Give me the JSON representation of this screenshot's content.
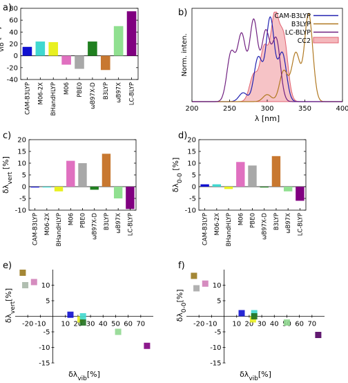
{
  "panel_labels": [
    "a)",
    "b)",
    "c)",
    "d)",
    "e)",
    "f)"
  ],
  "chart_data": [
    {
      "id": "a",
      "type": "bar",
      "ylabel": "δλ_vib [%]",
      "ylim": [
        -40,
        80
      ],
      "yticks": [
        -40,
        -20,
        0,
        20,
        40,
        60,
        80
      ],
      "categories": [
        "CAM-B3LYP",
        "M06-2X",
        "BHandHLYP",
        "M06",
        "PBE0",
        "ωB97X-D",
        "B3LYP",
        "ωB97X",
        "LC-BLYP"
      ],
      "values": [
        15,
        24,
        23,
        -15,
        -22,
        24,
        -24,
        50,
        75
      ],
      "colors": [
        "#1010d0",
        "#40d8d0",
        "#e8f020",
        "#e070c0",
        "#a8a8a8",
        "#208020",
        "#c87830",
        "#90e090",
        "#800080"
      ]
    },
    {
      "id": "b",
      "type": "line",
      "xlabel": "λ [nm]",
      "ylabel": "Norm. inten.",
      "xlim": [
        200,
        400
      ],
      "xticks": [
        200,
        250,
        300,
        350,
        400
      ],
      "legend_position": "top-right",
      "series": [
        {
          "name": "CAM-B3LYP",
          "color": "#2020b0",
          "peaks": [
            [
              268,
              0.1
            ],
            [
              288,
              0.5
            ],
            [
              304,
              0.95
            ],
            [
              320,
              0.55
            ]
          ]
        },
        {
          "name": "B3LYP",
          "color": "#b07820",
          "peaks": [
            [
              300,
              0.08
            ],
            [
              322,
              0.35
            ],
            [
              338,
              0.55
            ],
            [
              355,
              1.0
            ]
          ]
        },
        {
          "name": "LC-BLYP",
          "color": "#702080",
          "peaks": [
            [
              252,
              0.55
            ],
            [
              266,
              0.75
            ],
            [
              282,
              0.92
            ],
            [
              298,
              0.78
            ],
            [
              312,
              0.7
            ]
          ]
        },
        {
          "name": "CC2",
          "color": "#e06070",
          "fill": "#f4b8bc",
          "peaks": [
            [
              282,
              0.3
            ],
            [
              296,
              0.6
            ],
            [
              310,
              0.95
            ],
            [
              322,
              0.7
            ]
          ]
        }
      ]
    },
    {
      "id": "c",
      "type": "bar",
      "ylabel": "δλ_vert [%]",
      "ylim": [
        -10,
        20
      ],
      "yticks": [
        -10,
        -5,
        0,
        5,
        10,
        15,
        20
      ],
      "categories": [
        "CAM-B3LYP",
        "M06-2X",
        "BHandHLYP",
        "M06",
        "PBE0",
        "ωB97X-D",
        "B3LYP",
        "ωB97X",
        "LC-BLYP"
      ],
      "values": [
        0,
        0,
        -2,
        11,
        10,
        -1.3,
        14,
        -5,
        -9.5
      ],
      "colors": [
        "#1010d0",
        "#40d8d0",
        "#e8f020",
        "#e070c0",
        "#a8a8a8",
        "#208020",
        "#c87830",
        "#90e090",
        "#800080"
      ]
    },
    {
      "id": "d",
      "type": "bar",
      "ylabel": "δλ_0-0 [%]",
      "ylim": [
        -10,
        20
      ],
      "yticks": [
        -10,
        -5,
        0,
        5,
        10,
        15,
        20
      ],
      "categories": [
        "CAM-B3LYP",
        "M06-2X",
        "BHandHLYP",
        "M06",
        "PBE0",
        "ωB97X-D",
        "B3LYP",
        "ωB97X",
        "LC-BLYP"
      ],
      "values": [
        1,
        1,
        -1,
        10.5,
        9,
        -0.3,
        13,
        -2,
        -6
      ],
      "colors": [
        "#1010d0",
        "#40d8d0",
        "#e8f020",
        "#e070c0",
        "#a8a8a8",
        "#208020",
        "#c87830",
        "#90e090",
        "#800080"
      ]
    },
    {
      "id": "e",
      "type": "scatter",
      "xlabel": "δλ_vib[%]",
      "ylabel": "δλ_vert[%]",
      "xlim": [
        -30,
        80
      ],
      "ylim": [
        -15,
        15
      ],
      "xticks": [
        -20,
        -10,
        10,
        20,
        30,
        40,
        50,
        60,
        70
      ],
      "yticks": [
        -15,
        -10,
        -5,
        5,
        10
      ],
      "points": [
        {
          "x": -24,
          "y": 14,
          "color": "#9a7a20"
        },
        {
          "x": -22,
          "y": 10,
          "color": "#a8b8a8"
        },
        {
          "x": -15,
          "y": 11,
          "color": "#d080b8"
        },
        {
          "x": 14,
          "y": 0.5,
          "color": "#1010d0"
        },
        {
          "x": 22,
          "y": -1,
          "color": "#e8f020"
        },
        {
          "x": 24,
          "y": 0,
          "color": "#40d8d0"
        },
        {
          "x": 24,
          "y": -2,
          "color": "#207020"
        },
        {
          "x": 52,
          "y": -5,
          "color": "#90d890"
        },
        {
          "x": 75,
          "y": -9.5,
          "color": "#800080"
        }
      ]
    },
    {
      "id": "f",
      "type": "scatter",
      "xlabel": "δλ_vib[%]",
      "ylabel": "δλ_0-0[%]",
      "xlim": [
        -30,
        80
      ],
      "ylim": [
        -15,
        15
      ],
      "xticks": [
        -20,
        -10,
        10,
        20,
        30,
        40,
        50,
        60,
        70
      ],
      "yticks": [
        -15,
        -10,
        -5,
        5,
        10
      ],
      "points": [
        {
          "x": -24,
          "y": 13,
          "color": "#9a7a20"
        },
        {
          "x": -22,
          "y": 9,
          "color": "#a8a8a8"
        },
        {
          "x": -15,
          "y": 10.5,
          "color": "#d080b8"
        },
        {
          "x": 14,
          "y": 1,
          "color": "#1010d0"
        },
        {
          "x": 23,
          "y": -1,
          "color": "#e8f020"
        },
        {
          "x": 24,
          "y": 1,
          "color": "#40d8d0"
        },
        {
          "x": 24,
          "y": 0,
          "color": "#207020"
        },
        {
          "x": 50,
          "y": -2,
          "color": "#90d890"
        },
        {
          "x": 75,
          "y": -6,
          "color": "#500060"
        }
      ]
    }
  ]
}
